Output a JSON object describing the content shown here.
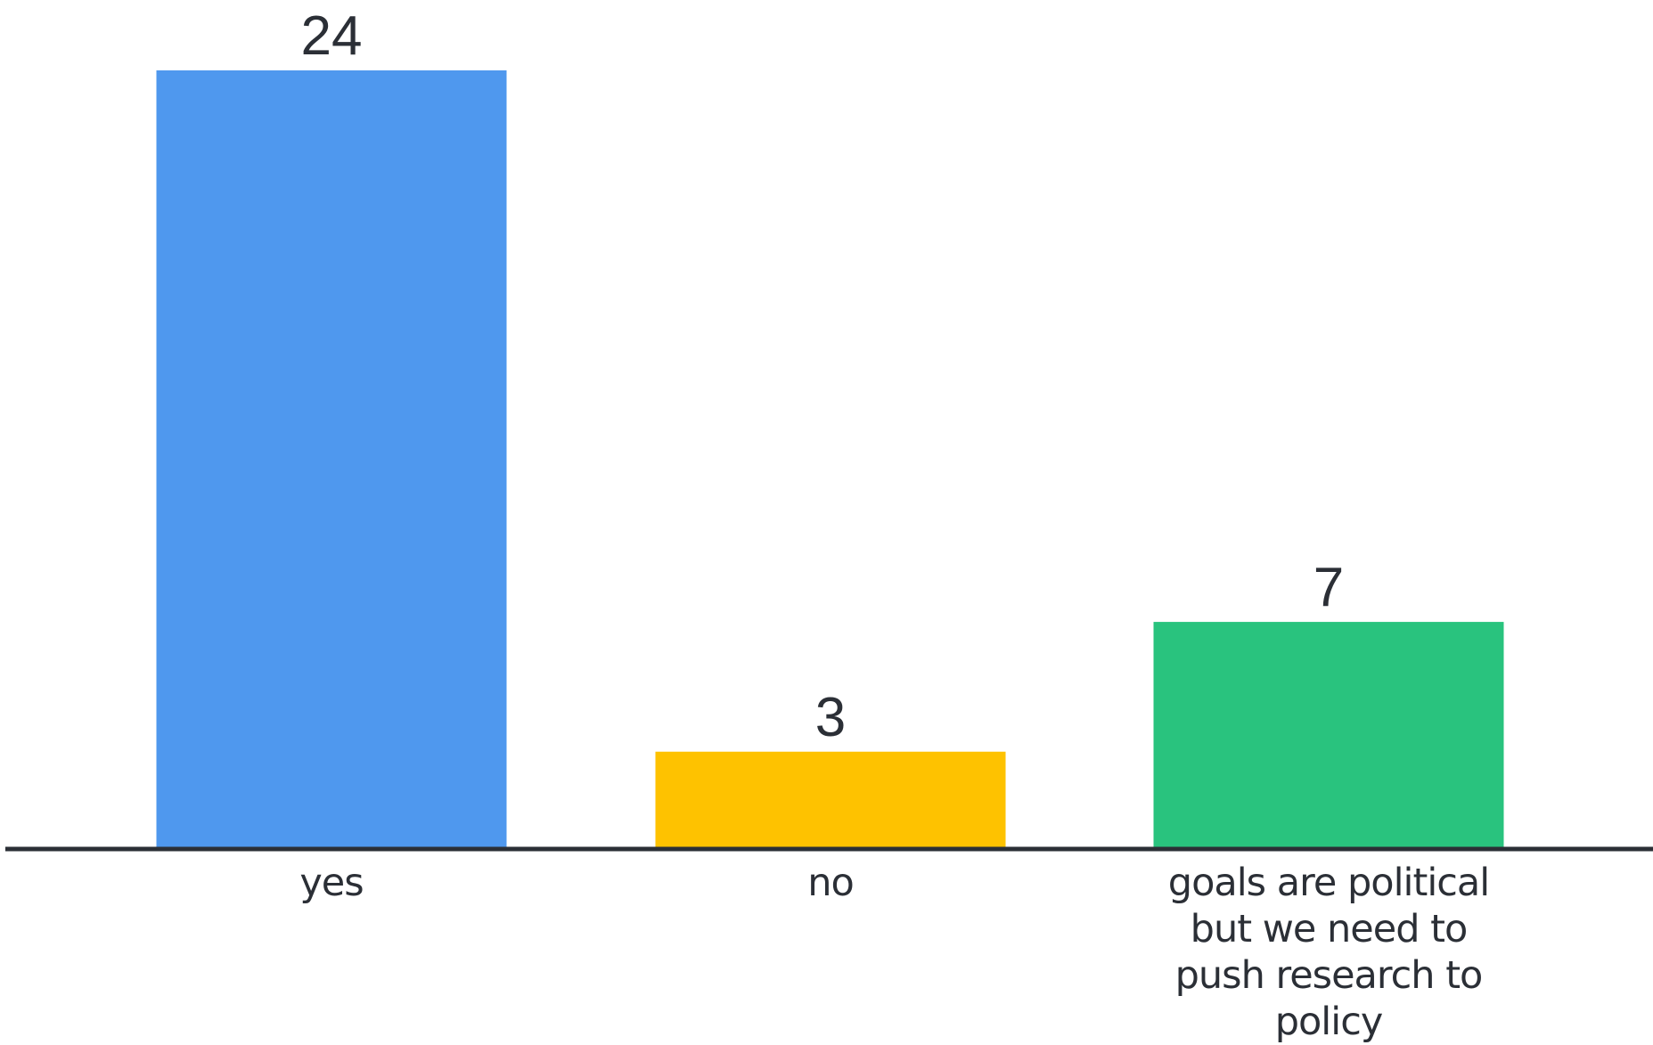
{
  "chart_data": {
    "type": "bar",
    "categories": [
      "yes",
      "no",
      "goals are political but we need to push research to policy"
    ],
    "category_label_lines": [
      [
        "yes"
      ],
      [
        "no"
      ],
      [
        "goals are political",
        "but we need to",
        "push research to",
        "policy"
      ]
    ],
    "values": [
      24,
      3,
      7
    ],
    "value_labels": [
      "24",
      "3",
      "7"
    ],
    "colors": [
      "#4f98ee",
      "#fec200",
      "#29c37e"
    ],
    "axis_color": "#2b2f36",
    "ylim": [
      0,
      24
    ],
    "grid": false,
    "legend": "none"
  }
}
